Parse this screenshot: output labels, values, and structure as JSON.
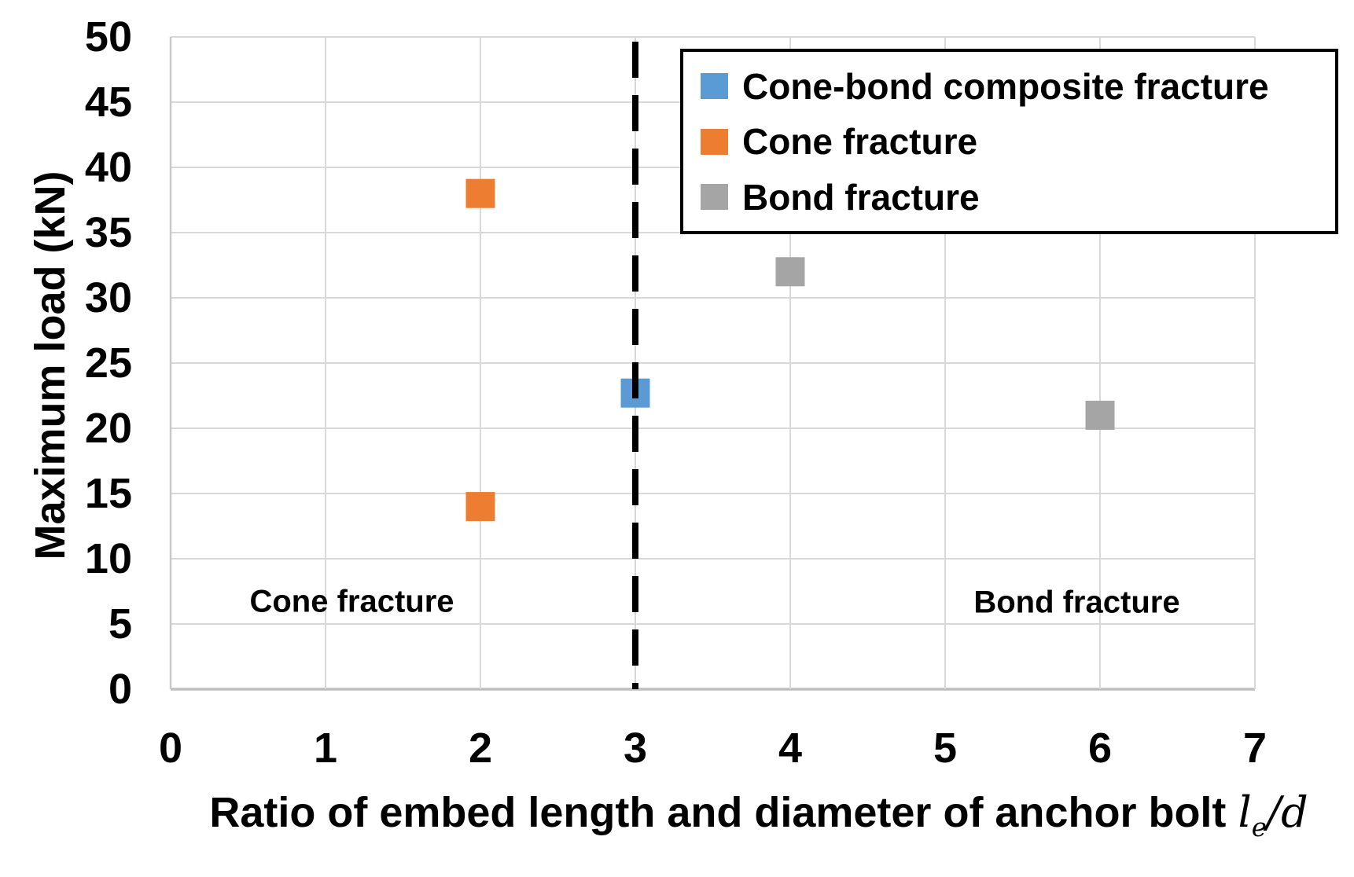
{
  "chart_data": {
    "type": "scatter",
    "title": "",
    "ylabel": "Maximum load (kN)",
    "xlabel": "Ratio of embed length and diameter of anchor bolt",
    "xlabel_math": {
      "base": "l",
      "sub": "e",
      "rest": "/d"
    },
    "xlim": [
      0,
      7
    ],
    "ylim": [
      0,
      50
    ],
    "xticks": [
      "0",
      "1",
      "2",
      "3",
      "4",
      "5",
      "6",
      "7"
    ],
    "yticks": [
      "0",
      "5",
      "10",
      "15",
      "20",
      "25",
      "30",
      "35",
      "40",
      "45",
      "50"
    ],
    "grid": true,
    "legend_position": "top-right",
    "series": [
      {
        "name": "Cone-bond composite fracture",
        "color": "#5B9BD5",
        "marker": "square",
        "points": [
          {
            "x": 3,
            "y": 22.7
          }
        ]
      },
      {
        "name": "Cone fracture",
        "color": "#ED7D31",
        "marker": "square",
        "points": [
          {
            "x": 2,
            "y": 38
          },
          {
            "x": 2,
            "y": 14
          }
        ]
      },
      {
        "name": "Bond fracture",
        "color": "#A5A5A5",
        "marker": "square",
        "points": [
          {
            "x": 4,
            "y": 32
          },
          {
            "x": 6,
            "y": 21
          }
        ]
      }
    ],
    "divider_line": {
      "x": 3,
      "style": "dashed",
      "color": "#000000"
    },
    "annotations": [
      {
        "text": "Cone fracture",
        "x": 1.17,
        "y": 6.7
      },
      {
        "text": "Bond fracture",
        "x": 5.85,
        "y": 6.6
      }
    ],
    "colors": {
      "gridline": "#D9D9D9",
      "axis_line": "#BFBFBF",
      "left_axis_line": "#C9C9C9",
      "text": "#000000",
      "background": "#FFFFFF"
    }
  }
}
